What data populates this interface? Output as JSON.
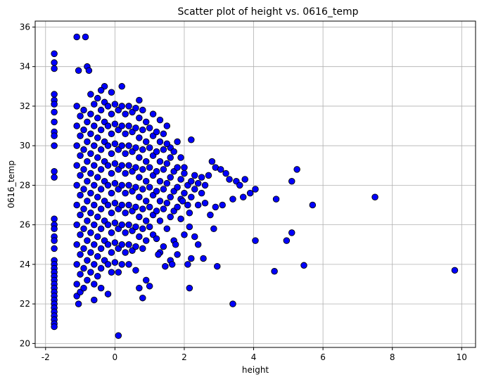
{
  "chart_data": {
    "type": "scatter",
    "title": "Scatter plot of height vs. 0616_temp",
    "xlabel": "height",
    "ylabel": "0616_temp",
    "xlim": [
      -2.3,
      10.4
    ],
    "ylim": [
      19.8,
      36.3
    ],
    "xticks": [
      -2,
      0,
      2,
      4,
      6,
      8,
      10
    ],
    "yticks": [
      20,
      22,
      24,
      26,
      28,
      30,
      32,
      34,
      36
    ],
    "grid": true,
    "marker_color": "#0000ff",
    "edge_color": "#000000",
    "points": [
      [
        -1.75,
        34.65
      ],
      [
        -1.75,
        34.2
      ],
      [
        -1.75,
        33.9
      ],
      [
        -1.75,
        32.6
      ],
      [
        -1.75,
        32.3
      ],
      [
        -1.75,
        32.1
      ],
      [
        -1.75,
        31.7
      ],
      [
        -1.75,
        31.2
      ],
      [
        -1.75,
        30.7
      ],
      [
        -1.75,
        30.5
      ],
      [
        -1.75,
        30.0
      ],
      [
        -1.75,
        28.7
      ],
      [
        -1.75,
        28.4
      ],
      [
        -1.75,
        26.3
      ],
      [
        -1.75,
        26.0
      ],
      [
        -1.75,
        25.8
      ],
      [
        -1.75,
        25.4
      ],
      [
        -1.75,
        25.2
      ],
      [
        -1.75,
        24.8
      ],
      [
        -1.75,
        24.2
      ],
      [
        -1.75,
        24.0
      ],
      [
        -1.75,
        23.8
      ],
      [
        -1.75,
        23.6
      ],
      [
        -1.75,
        23.4
      ],
      [
        -1.75,
        23.2
      ],
      [
        -1.75,
        23.0
      ],
      [
        -1.75,
        22.8
      ],
      [
        -1.75,
        22.6
      ],
      [
        -1.75,
        22.4
      ],
      [
        -1.75,
        22.2
      ],
      [
        -1.75,
        22.0
      ],
      [
        -1.75,
        21.8
      ],
      [
        -1.75,
        21.6
      ],
      [
        -1.75,
        21.4
      ],
      [
        -1.75,
        21.2
      ],
      [
        -1.75,
        21.0
      ],
      [
        -1.75,
        20.85
      ],
      [
        -1.1,
        35.5
      ],
      [
        -0.85,
        35.5
      ],
      [
        -0.8,
        34.0
      ],
      [
        -0.75,
        33.8
      ],
      [
        -1.05,
        33.8
      ],
      [
        -0.3,
        33.0
      ],
      [
        0.2,
        33.0
      ],
      [
        -0.7,
        32.6
      ],
      [
        -0.4,
        32.8
      ],
      [
        -0.1,
        32.7
      ],
      [
        0.7,
        32.3
      ],
      [
        1.1,
        31.6
      ],
      [
        1.5,
        31.0
      ],
      [
        1.3,
        31.3
      ],
      [
        0.8,
        31.8
      ],
      [
        1.4,
        30.6
      ],
      [
        1.6,
        29.9
      ],
      [
        1.8,
        30.2
      ],
      [
        2.2,
        30.3
      ],
      [
        1.9,
        29.4
      ],
      [
        2.0,
        28.9
      ],
      [
        2.3,
        28.5
      ],
      [
        2.5,
        28.4
      ],
      [
        2.7,
        28.5
      ],
      [
        2.8,
        29.2
      ],
      [
        2.9,
        28.9
      ],
      [
        3.05,
        28.8
      ],
      [
        3.2,
        28.6
      ],
      [
        3.3,
        28.3
      ],
      [
        3.5,
        28.2
      ],
      [
        3.6,
        28.0
      ],
      [
        3.75,
        28.3
      ],
      [
        3.9,
        27.6
      ],
      [
        4.05,
        27.8
      ],
      [
        3.1,
        27.0
      ],
      [
        3.7,
        27.4
      ],
      [
        3.4,
        27.3
      ],
      [
        2.6,
        27.1
      ],
      [
        2.9,
        26.9
      ],
      [
        2.75,
        26.5
      ],
      [
        2.15,
        26.6
      ],
      [
        2.15,
        25.9
      ],
      [
        2.85,
        25.8
      ],
      [
        2.3,
        25.4
      ],
      [
        2.4,
        25.0
      ],
      [
        2.55,
        24.3
      ],
      [
        2.2,
        24.3
      ],
      [
        2.1,
        24.0
      ],
      [
        2.95,
        23.9
      ],
      [
        2.15,
        22.8
      ],
      [
        3.4,
        22.0
      ],
      [
        4.05,
        25.2
      ],
      [
        4.65,
        27.3
      ],
      [
        4.6,
        23.65
      ],
      [
        4.95,
        25.2
      ],
      [
        5.1,
        25.6
      ],
      [
        5.1,
        28.2
      ],
      [
        5.25,
        28.8
      ],
      [
        5.45,
        23.95
      ],
      [
        5.7,
        27.0
      ],
      [
        7.5,
        27.4
      ],
      [
        9.8,
        23.7
      ],
      [
        0.1,
        20.4
      ],
      [
        -1.1,
        32.0
      ],
      [
        -1.1,
        31.0
      ],
      [
        -1.1,
        30.0
      ],
      [
        -1.1,
        29.0
      ],
      [
        -1.1,
        28.0
      ],
      [
        -1.1,
        27.0
      ],
      [
        -1.1,
        26.0
      ],
      [
        -1.1,
        25.0
      ],
      [
        -1.1,
        24.0
      ],
      [
        -1.1,
        23.0
      ],
      [
        -1.1,
        22.4
      ],
      [
        -1.05,
        22.0
      ],
      [
        -1.0,
        31.5
      ],
      [
        -1.0,
        30.5
      ],
      [
        -1.0,
        29.5
      ],
      [
        -1.0,
        28.5
      ],
      [
        -1.0,
        27.5
      ],
      [
        -1.0,
        26.5
      ],
      [
        -1.0,
        25.5
      ],
      [
        -1.0,
        24.5
      ],
      [
        -1.0,
        23.5
      ],
      [
        -1.0,
        22.6
      ],
      [
        -0.9,
        31.8
      ],
      [
        -0.9,
        30.8
      ],
      [
        -0.9,
        29.8
      ],
      [
        -0.9,
        28.8
      ],
      [
        -0.9,
        27.8
      ],
      [
        -0.9,
        26.8
      ],
      [
        -0.9,
        25.8
      ],
      [
        -0.9,
        24.8
      ],
      [
        -0.9,
        23.8
      ],
      [
        -0.9,
        22.8
      ],
      [
        -0.8,
        31.2
      ],
      [
        -0.8,
        30.2
      ],
      [
        -0.8,
        29.2
      ],
      [
        -0.8,
        28.2
      ],
      [
        -0.8,
        27.2
      ],
      [
        -0.8,
        26.2
      ],
      [
        -0.8,
        25.2
      ],
      [
        -0.8,
        24.2
      ],
      [
        -0.8,
        23.2
      ],
      [
        -0.7,
        31.6
      ],
      [
        -0.7,
        30.6
      ],
      [
        -0.7,
        29.6
      ],
      [
        -0.7,
        28.6
      ],
      [
        -0.7,
        27.6
      ],
      [
        -0.7,
        26.6
      ],
      [
        -0.7,
        25.6
      ],
      [
        -0.7,
        24.6
      ],
      [
        -0.7,
        23.6
      ],
      [
        -0.6,
        32.1
      ],
      [
        -0.6,
        31.0
      ],
      [
        -0.6,
        30.0
      ],
      [
        -0.6,
        29.0
      ],
      [
        -0.6,
        28.0
      ],
      [
        -0.6,
        27.0
      ],
      [
        -0.6,
        26.0
      ],
      [
        -0.6,
        25.0
      ],
      [
        -0.6,
        24.0
      ],
      [
        -0.6,
        23.0
      ],
      [
        -0.6,
        22.2
      ],
      [
        -0.5,
        32.4
      ],
      [
        -0.5,
        31.4
      ],
      [
        -0.5,
        30.4
      ],
      [
        -0.5,
        29.4
      ],
      [
        -0.5,
        28.4
      ],
      [
        -0.5,
        27.4
      ],
      [
        -0.5,
        26.4
      ],
      [
        -0.5,
        25.4
      ],
      [
        -0.5,
        24.4
      ],
      [
        -0.5,
        23.4
      ],
      [
        -0.4,
        31.8
      ],
      [
        -0.4,
        30.8
      ],
      [
        -0.4,
        29.8
      ],
      [
        -0.4,
        28.8
      ],
      [
        -0.4,
        27.8
      ],
      [
        -0.4,
        26.8
      ],
      [
        -0.4,
        25.8
      ],
      [
        -0.4,
        24.8
      ],
      [
        -0.4,
        23.8
      ],
      [
        -0.4,
        22.8
      ],
      [
        -0.3,
        32.2
      ],
      [
        -0.3,
        31.2
      ],
      [
        -0.3,
        30.2
      ],
      [
        -0.3,
        29.2
      ],
      [
        -0.3,
        28.2
      ],
      [
        -0.3,
        27.2
      ],
      [
        -0.3,
        26.2
      ],
      [
        -0.3,
        25.2
      ],
      [
        -0.3,
        24.2
      ],
      [
        -0.2,
        32.0
      ],
      [
        -0.2,
        31.0
      ],
      [
        -0.2,
        30.0
      ],
      [
        -0.2,
        29.0
      ],
      [
        -0.2,
        28.0
      ],
      [
        -0.2,
        27.0
      ],
      [
        -0.2,
        26.0
      ],
      [
        -0.2,
        25.0
      ],
      [
        -0.2,
        24.0
      ],
      [
        -0.2,
        22.5
      ],
      [
        -0.1,
        31.6
      ],
      [
        -0.1,
        30.6
      ],
      [
        -0.1,
        29.6
      ],
      [
        -0.1,
        28.6
      ],
      [
        -0.1,
        27.6
      ],
      [
        -0.1,
        26.6
      ],
      [
        -0.1,
        25.6
      ],
      [
        -0.1,
        24.6
      ],
      [
        -0.1,
        23.6
      ],
      [
        0.0,
        32.1
      ],
      [
        0.0,
        31.1
      ],
      [
        0.0,
        30.1
      ],
      [
        0.0,
        29.1
      ],
      [
        0.0,
        28.1
      ],
      [
        0.0,
        27.1
      ],
      [
        0.0,
        26.1
      ],
      [
        0.0,
        25.1
      ],
      [
        0.0,
        24.1
      ],
      [
        0.1,
        31.8
      ],
      [
        0.1,
        30.8
      ],
      [
        0.1,
        29.8
      ],
      [
        0.1,
        28.8
      ],
      [
        0.1,
        27.8
      ],
      [
        0.1,
        26.8
      ],
      [
        0.1,
        25.8
      ],
      [
        0.1,
        24.8
      ],
      [
        0.1,
        23.6
      ],
      [
        0.2,
        32.0
      ],
      [
        0.2,
        31.0
      ],
      [
        0.2,
        30.0
      ],
      [
        0.2,
        29.0
      ],
      [
        0.2,
        28.0
      ],
      [
        0.2,
        27.0
      ],
      [
        0.2,
        26.0
      ],
      [
        0.2,
        25.0
      ],
      [
        0.2,
        24.0
      ],
      [
        0.3,
        31.6
      ],
      [
        0.3,
        30.6
      ],
      [
        0.3,
        29.6
      ],
      [
        0.3,
        28.6
      ],
      [
        0.3,
        27.6
      ],
      [
        0.3,
        26.6
      ],
      [
        0.3,
        25.6
      ],
      [
        0.3,
        24.6
      ],
      [
        0.4,
        32.0
      ],
      [
        0.4,
        31.0
      ],
      [
        0.4,
        30.0
      ],
      [
        0.4,
        29.0
      ],
      [
        0.4,
        28.0
      ],
      [
        0.4,
        27.0
      ],
      [
        0.4,
        26.0
      ],
      [
        0.4,
        25.0
      ],
      [
        0.4,
        24.0
      ],
      [
        0.5,
        31.7
      ],
      [
        0.5,
        30.7
      ],
      [
        0.5,
        29.7
      ],
      [
        0.5,
        28.7
      ],
      [
        0.5,
        27.7
      ],
      [
        0.5,
        26.7
      ],
      [
        0.5,
        25.7
      ],
      [
        0.5,
        24.7
      ],
      [
        0.6,
        31.9
      ],
      [
        0.6,
        30.9
      ],
      [
        0.6,
        29.9
      ],
      [
        0.6,
        28.9
      ],
      [
        0.6,
        27.9
      ],
      [
        0.6,
        26.9
      ],
      [
        0.6,
        25.9
      ],
      [
        0.6,
        24.9
      ],
      [
        0.6,
        23.7
      ],
      [
        0.7,
        31.4
      ],
      [
        0.7,
        30.4
      ],
      [
        0.7,
        29.4
      ],
      [
        0.7,
        28.4
      ],
      [
        0.7,
        27.4
      ],
      [
        0.7,
        26.4
      ],
      [
        0.7,
        25.4
      ],
      [
        0.7,
        22.8
      ],
      [
        0.8,
        30.8
      ],
      [
        0.8,
        29.8
      ],
      [
        0.8,
        28.8
      ],
      [
        0.8,
        27.8
      ],
      [
        0.8,
        26.8
      ],
      [
        0.8,
        25.8
      ],
      [
        0.8,
        24.8
      ],
      [
        0.8,
        22.3
      ],
      [
        0.9,
        31.2
      ],
      [
        0.9,
        30.2
      ],
      [
        0.9,
        29.2
      ],
      [
        0.9,
        28.2
      ],
      [
        0.9,
        27.2
      ],
      [
        0.9,
        26.2
      ],
      [
        0.9,
        25.2
      ],
      [
        0.9,
        23.2
      ],
      [
        1.0,
        30.9
      ],
      [
        1.0,
        29.9
      ],
      [
        1.0,
        28.9
      ],
      [
        1.0,
        27.9
      ],
      [
        1.0,
        26.9
      ],
      [
        1.0,
        25.9
      ],
      [
        1.0,
        22.9
      ],
      [
        1.1,
        30.5
      ],
      [
        1.1,
        29.5
      ],
      [
        1.1,
        28.5
      ],
      [
        1.1,
        27.5
      ],
      [
        1.1,
        26.5
      ],
      [
        1.1,
        25.5
      ],
      [
        1.2,
        30.7
      ],
      [
        1.2,
        29.7
      ],
      [
        1.2,
        28.7
      ],
      [
        1.2,
        27.7
      ],
      [
        1.2,
        26.7
      ],
      [
        1.2,
        25.3
      ],
      [
        1.3,
        30.2
      ],
      [
        1.3,
        29.2
      ],
      [
        1.3,
        28.2
      ],
      [
        1.3,
        27.2
      ],
      [
        1.3,
        26.2
      ],
      [
        1.3,
        24.6
      ],
      [
        1.4,
        29.8
      ],
      [
        1.4,
        28.8
      ],
      [
        1.4,
        27.8
      ],
      [
        1.4,
        26.8
      ],
      [
        1.4,
        24.9
      ],
      [
        1.5,
        30.1
      ],
      [
        1.5,
        29.1
      ],
      [
        1.5,
        28.1
      ],
      [
        1.5,
        27.1
      ],
      [
        1.5,
        25.8
      ],
      [
        1.6,
        29.4
      ],
      [
        1.6,
        28.4
      ],
      [
        1.6,
        27.4
      ],
      [
        1.6,
        26.4
      ],
      [
        1.6,
        24.2
      ],
      [
        1.7,
        29.7
      ],
      [
        1.7,
        28.7
      ],
      [
        1.7,
        27.7
      ],
      [
        1.7,
        26.7
      ],
      [
        1.7,
        25.2
      ],
      [
        1.8,
        28.9
      ],
      [
        1.8,
        27.9
      ],
      [
        1.8,
        26.9
      ],
      [
        1.8,
        24.5
      ],
      [
        1.9,
        28.3
      ],
      [
        1.9,
        27.3
      ],
      [
        1.9,
        26.3
      ],
      [
        2.0,
        28.6
      ],
      [
        2.0,
        27.6
      ],
      [
        2.0,
        25.5
      ],
      [
        2.1,
        28.0
      ],
      [
        2.1,
        27.0
      ],
      [
        2.2,
        28.2
      ],
      [
        2.2,
        27.4
      ],
      [
        2.3,
        27.8
      ],
      [
        2.4,
        28.1
      ],
      [
        2.4,
        27.0
      ],
      [
        2.5,
        27.6
      ],
      [
        2.6,
        28.0
      ],
      [
        1.65,
        24.0
      ],
      [
        1.45,
        23.9
      ],
      [
        1.25,
        24.5
      ],
      [
        1.75,
        25.0
      ],
      [
        1.95,
        27.2
      ]
    ]
  }
}
